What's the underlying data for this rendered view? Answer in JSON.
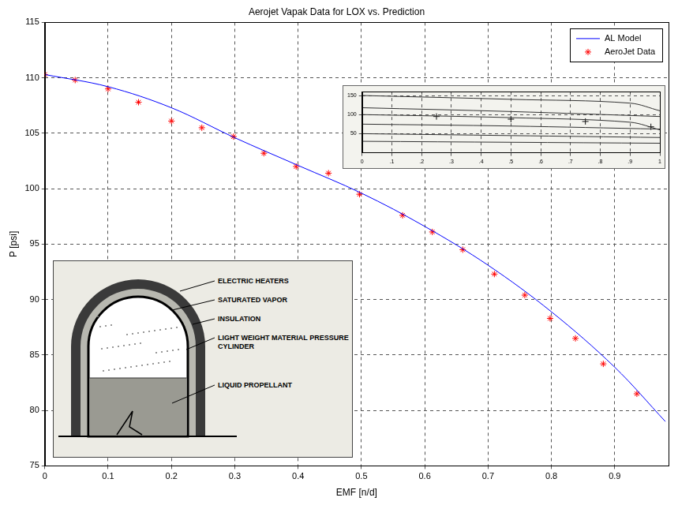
{
  "chart_data": [
    {
      "type": "line",
      "title": "Aerojet Vapak Data for LOX vs. Prediction",
      "xlabel": "EMF [n/d]",
      "ylabel": "P [psi]",
      "xlim": [
        0,
        0.985
      ],
      "xticks": [
        0,
        0.1,
        0.2,
        0.3,
        0.4,
        0.5,
        0.6,
        0.7,
        0.8,
        0.9
      ],
      "ylim": [
        75,
        115
      ],
      "yticks": [
        75,
        80,
        85,
        90,
        95,
        100,
        105,
        110,
        115
      ],
      "grid": true,
      "legend": "upper right",
      "series": [
        {
          "name": "AL Model",
          "color": "#0000ff",
          "type": "line",
          "marker": "none",
          "line_style": "solid",
          "x": [
            0,
            0.1,
            0.2,
            0.3,
            0.4,
            0.5,
            0.6,
            0.7,
            0.8,
            0.9,
            0.98
          ],
          "values": [
            110.3,
            109.2,
            107.3,
            104.6,
            102.1,
            99.6,
            96.6,
            93.1,
            88.9,
            83.9,
            79.0
          ]
        },
        {
          "name": "AeroJet Data",
          "color": "#ff0000",
          "type": "scatter",
          "marker": "star",
          "line_style": "none",
          "x": [
            0,
            0.048,
            0.1,
            0.148,
            0.2,
            0.248,
            0.298,
            0.346,
            0.397,
            0.448,
            0.497,
            0.565,
            0.612,
            0.66,
            0.71,
            0.758,
            0.798,
            0.838,
            0.882,
            0.935
          ],
          "values": [
            110.3,
            109.8,
            109.0,
            107.8,
            106.1,
            105.5,
            104.7,
            103.2,
            102.0,
            101.4,
            99.5,
            97.6,
            96.1,
            94.5,
            92.3,
            90.4,
            88.3,
            86.5,
            84.2,
            81.5
          ]
        }
      ],
      "annotations": [
        "ELECTRIC HEATERS",
        "SATURATED VAPOR",
        "INSULATION",
        "LIGHT WEIGHT MATERIAL PRESSURE CYLINDER",
        "LIQUID PROPELLANT"
      ]
    },
    {
      "type": "line",
      "xlim": [
        0,
        1
      ],
      "xticks": [
        0,
        {
          "value": 0.1,
          "label": ".1"
        },
        {
          "value": 0.2,
          "label": ".2"
        },
        {
          "value": 0.3,
          "label": ".3"
        },
        {
          "value": 0.4,
          "label": ".4"
        },
        {
          "value": 0.5,
          "label": ".5"
        },
        {
          "value": 0.6,
          "label": ".6"
        },
        {
          "value": 0.7,
          "label": ".7"
        },
        {
          "value": 0.8,
          "label": ".8"
        },
        {
          "value": 0.9,
          "label": ".9"
        },
        1
      ],
      "ylim": [
        0,
        160
      ],
      "yticks": [
        50,
        100,
        150
      ],
      "grid": true,
      "series": [
        {
          "color": "#333333",
          "type": "line",
          "marker": "none",
          "line_style": "solid",
          "x": [
            0,
            0.5,
            0.9,
            1
          ],
          "values": [
            150,
            140,
            130,
            110
          ]
        },
        {
          "color": "#333333",
          "type": "line",
          "marker": "none",
          "line_style": "solid",
          "x": [
            0,
            0.5,
            1
          ],
          "values": [
            118,
            108,
            95
          ]
        },
        {
          "color": "#333333",
          "type": "line",
          "marker": "none",
          "line_style": "solid",
          "x": [
            0,
            0.5,
            0.9,
            1
          ],
          "values": [
            100,
            92,
            80,
            60
          ]
        },
        {
          "color": "#333333",
          "type": "line",
          "marker": "none",
          "line_style": "solid",
          "x": [
            0,
            0.5,
            1
          ],
          "values": [
            75,
            70,
            62
          ]
        },
        {
          "color": "#333333",
          "type": "line",
          "marker": "none",
          "line_style": "solid",
          "x": [
            0,
            0.5,
            1
          ],
          "values": [
            50,
            45,
            40
          ]
        },
        {
          "color": "#333333",
          "type": "line",
          "marker": "none",
          "line_style": "solid",
          "x": [
            0,
            1
          ],
          "values": [
            30,
            25
          ]
        },
        {
          "color": "#111111",
          "type": "scatter",
          "marker": "cross",
          "line_style": "none",
          "x": [
            0.25,
            0.5,
            0.75,
            0.97
          ],
          "values": [
            95,
            88,
            82,
            68
          ]
        }
      ]
    }
  ]
}
